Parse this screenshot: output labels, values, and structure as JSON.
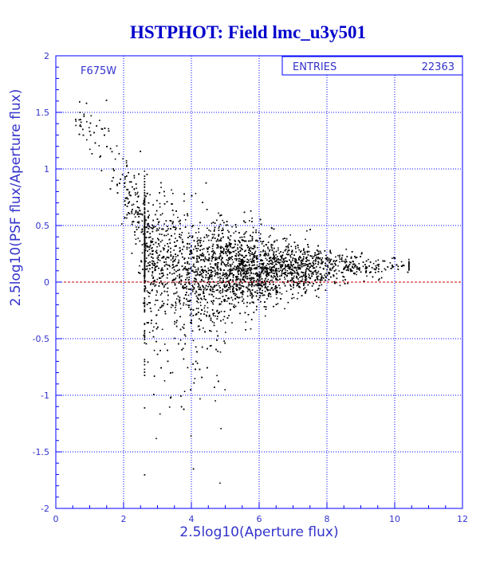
{
  "title": "HSTPHOT: Field lmc_u3y501",
  "stats_box": {
    "label": "ENTRIES",
    "value": "22363"
  },
  "filter_label": "F675W",
  "colors": {
    "title": "#0000cc",
    "axis": "#0000ff",
    "text": "#3333cc",
    "points": "#000000",
    "zero_line": "#cc0000"
  },
  "chart_data": {
    "type": "scatter",
    "title": "HSTPHOT: Field lmc_u3y501",
    "xlabel": "2.5log10(Aperture flux)",
    "ylabel": "2.5log10(PSF flux/Aperture flux)",
    "xlim": [
      0,
      12
    ],
    "ylim": [
      -2,
      2
    ],
    "x_ticks": [
      "0",
      "2",
      "4",
      "6",
      "8",
      "10",
      "12"
    ],
    "y_ticks": [
      "-2",
      "-1.5",
      "-1",
      "-0.5",
      "0",
      "0.5",
      "1",
      "1.5",
      "2"
    ],
    "grid": true,
    "grid_style": "dotted",
    "reference_line": {
      "y": 0,
      "style": "dashed",
      "color": "#cc0000"
    },
    "entries": 22363,
    "annotation": "F675W",
    "distribution": {
      "description_of_trend": [
        {
          "x": 0.6,
          "y_center": 1.45,
          "y_spread": 0.15
        },
        {
          "x": 1.5,
          "y_center": 1.2,
          "y_spread": 0.3
        },
        {
          "x": 2.0,
          "y_center": 0.85,
          "y_spread": 0.3
        },
        {
          "x": 2.5,
          "y_center": 0.45,
          "y_spread": 0.4
        },
        {
          "x": 3.0,
          "y_center": 0.25,
          "y_spread": 0.5
        },
        {
          "x": 4.0,
          "y_center": 0.12,
          "y_spread": 0.45
        },
        {
          "x": 6.0,
          "y_center": 0.12,
          "y_spread": 0.3
        },
        {
          "x": 8.0,
          "y_center": 0.13,
          "y_spread": 0.15
        },
        {
          "x": 10.3,
          "y_center": 0.15,
          "y_spread": 0.05
        }
      ],
      "x_range": [
        0.5,
        10.4
      ],
      "y_range": [
        -1.95,
        1.72
      ]
    }
  }
}
